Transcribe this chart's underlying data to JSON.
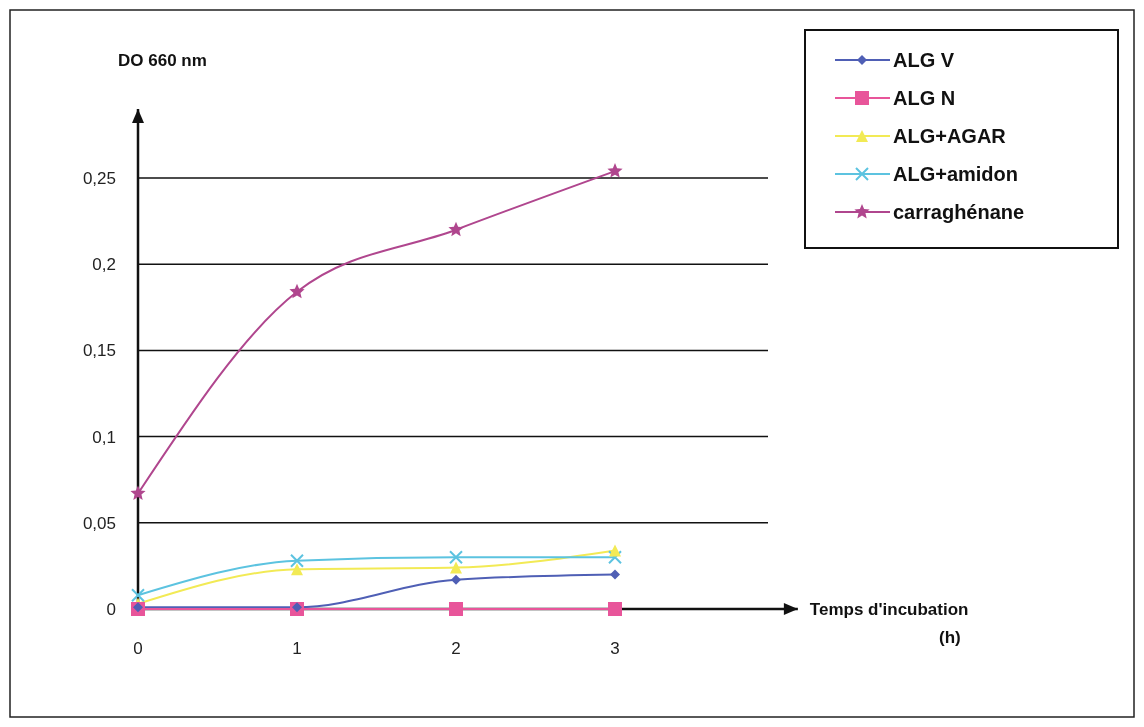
{
  "chart_data": {
    "type": "line",
    "xlabel": "Temps d'incubation (h)",
    "ylabel": "DO 660 nm",
    "x": [
      0,
      1,
      2,
      3
    ],
    "xlim": [
      0,
      4.15
    ],
    "xticks": [
      0,
      1,
      2,
      3
    ],
    "ylim": [
      0,
      0.29
    ],
    "yticks": [
      {
        "value": 0,
        "label": "0"
      },
      {
        "value": 0.05,
        "label": "0,05"
      },
      {
        "value": 0.1,
        "label": "0,1"
      },
      {
        "value": 0.15,
        "label": "0,15"
      },
      {
        "value": 0.2,
        "label": "0,2"
      },
      {
        "value": 0.25,
        "label": "0,25"
      }
    ],
    "grid": "y",
    "legend": "top right",
    "series": [
      {
        "name": "ALG V",
        "color": "#4f5fb5",
        "marker": "diamond",
        "values": [
          0.001,
          0.001,
          0.017,
          0.02
        ]
      },
      {
        "name": "ALG N",
        "color": "#e8559a",
        "marker": "square",
        "values": [
          0,
          0,
          0,
          0
        ]
      },
      {
        "name": "ALG+AGAR",
        "color": "#f2ea55",
        "marker": "triangle",
        "values": [
          0.003,
          0.023,
          0.024,
          0.034
        ]
      },
      {
        "name": "ALG+amidon",
        "color": "#5cc3e0",
        "marker": "cross",
        "values": [
          0.008,
          0.028,
          0.03,
          0.03
        ]
      },
      {
        "name": "carraghénane",
        "color": "#b0468e",
        "marker": "star",
        "values": [
          0.067,
          0.184,
          0.22,
          0.254
        ]
      }
    ]
  }
}
